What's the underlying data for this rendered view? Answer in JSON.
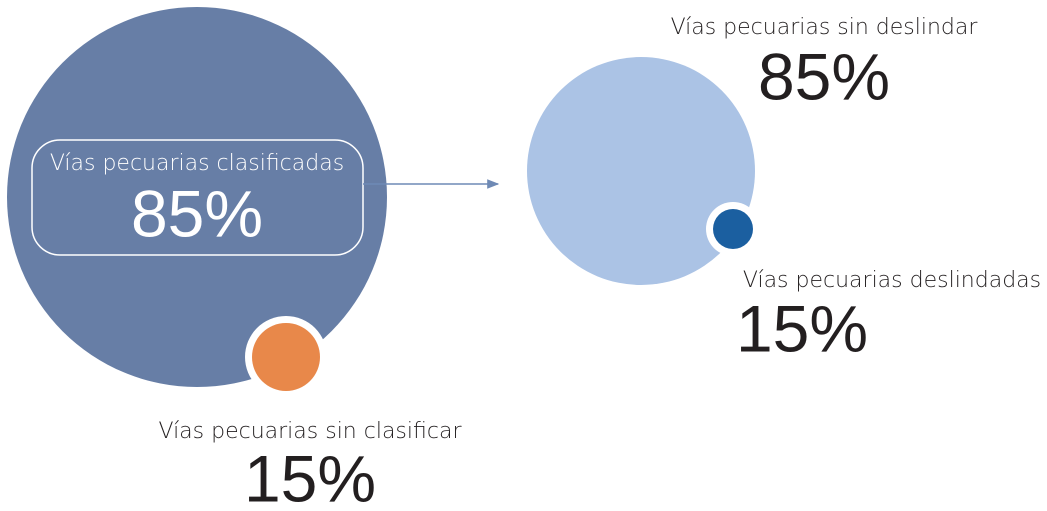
{
  "groups": [
    {
      "label": "Vías pecuarias clasificadas",
      "value": "85%"
    },
    {
      "label": "Vías pecuarias sin clasificar",
      "value": "15%"
    },
    {
      "label": "Vías pecuarias sin deslindar",
      "value": "85%"
    },
    {
      "label": "Vías pecuarias deslindadas",
      "value": "15%"
    }
  ]
}
